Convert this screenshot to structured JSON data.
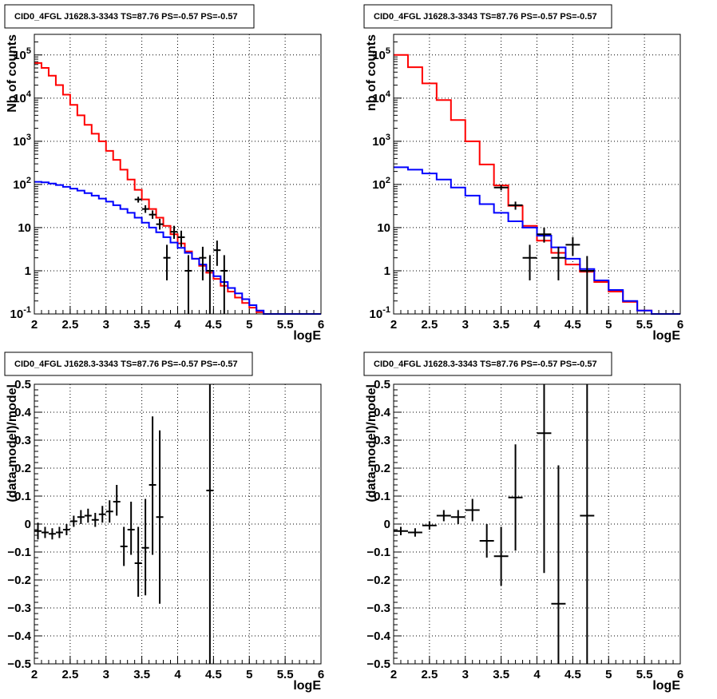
{
  "colors": {
    "model_total": "#ff0000",
    "model_background": "#0000ff",
    "data": "#000000",
    "grid": "#000000"
  },
  "chart_data": [
    {
      "type": "line",
      "title": "CID0_4FGL J1628.3-3343 TS=87.76 PS=-0.57 PS=-0.57",
      "xlabel": "logE",
      "ylabel": "Nb of counts",
      "xlim": [
        2,
        6
      ],
      "ylim": [
        0.1,
        300000
      ],
      "yscale": "log",
      "grid": true,
      "xticks": [
        "2",
        "2.5",
        "3",
        "3.5",
        "4",
        "4.5",
        "5",
        "5.5",
        "6"
      ],
      "yticks": [
        {
          "v": 0.1,
          "b": "10",
          "e": "-1"
        },
        {
          "v": 1,
          "b": "1",
          "e": ""
        },
        {
          "v": 10,
          "b": "10",
          "e": ""
        },
        {
          "v": 100,
          "b": "10",
          "e": "2"
        },
        {
          "v": 1000,
          "b": "10",
          "e": "3"
        },
        {
          "v": 10000,
          "b": "10",
          "e": "4"
        },
        {
          "v": 100000,
          "b": "10",
          "e": "5"
        }
      ],
      "bin_edges": [
        2.0,
        2.1,
        2.2,
        2.3,
        2.4,
        2.5,
        2.6,
        2.7,
        2.8,
        2.9,
        3.0,
        3.1,
        3.2,
        3.3,
        3.4,
        3.5,
        3.6,
        3.7,
        3.8,
        3.9,
        4.0,
        4.1,
        4.2,
        4.3,
        4.4,
        4.5,
        4.6,
        4.7,
        4.8,
        4.9,
        5.0,
        5.1,
        5.2,
        5.3,
        5.4,
        5.5,
        5.6,
        5.7,
        5.8,
        5.9,
        6.0
      ],
      "series": [
        {
          "values": [
            65000,
            50000,
            33000,
            20000,
            12000,
            7000,
            4000,
            2400,
            1500,
            1000,
            600,
            370,
            220,
            130,
            75,
            45,
            27,
            17,
            11,
            7,
            4.3,
            2.8,
            1.9,
            1.3,
            0.9,
            0.65,
            0.45,
            0.33,
            0.24,
            0.18,
            0.14,
            0.11,
            0.09,
            0.09,
            0.09,
            0.09,
            0.09,
            0.09,
            0.09,
            0.09
          ]
        },
        {
          "values": [
            115,
            112,
            105,
            97,
            88,
            80,
            72,
            63,
            55,
            47,
            40,
            33,
            27,
            22,
            17,
            13,
            10,
            7.8,
            6,
            4.5,
            3.4,
            2.6,
            1.9,
            1.4,
            1.0,
            0.75,
            0.55,
            0.4,
            0.3,
            0.22,
            0.16,
            0.12,
            0.09,
            0.09,
            0.09,
            0.09,
            0.09,
            0.09,
            0.09,
            0.09
          ]
        }
      ],
      "points": [
        {
          "x": 3.45,
          "y": 45,
          "lo": 38,
          "hi": 52
        },
        {
          "x": 3.55,
          "y": 27,
          "lo": 22,
          "hi": 33
        },
        {
          "x": 3.65,
          "y": 20,
          "lo": 16,
          "hi": 25
        },
        {
          "x": 3.75,
          "y": 12,
          "lo": 9,
          "hi": 16
        },
        {
          "x": 3.85,
          "y": 2,
          "lo": 0.6,
          "hi": 4
        },
        {
          "x": 3.95,
          "y": 8,
          "lo": 5.5,
          "hi": 11
        },
        {
          "x": 4.05,
          "y": 6,
          "lo": 3.6,
          "hi": 8.5
        },
        {
          "x": 4.15,
          "y": 1,
          "lo": 0.1,
          "hi": 2.3
        },
        {
          "x": 4.35,
          "y": 2,
          "lo": 0.6,
          "hi": 3.6
        },
        {
          "x": 4.45,
          "y": 1,
          "lo": 0.1,
          "hi": 2.3
        },
        {
          "x": 4.55,
          "y": 3,
          "lo": 1.3,
          "hi": 5
        },
        {
          "x": 4.65,
          "y": 1,
          "lo": 0.1,
          "hi": 2.3
        }
      ]
    },
    {
      "type": "line",
      "title": "CID0_4FGL J1628.3-3343 TS=87.76 PS=-0.57 PS=-0.57",
      "xlabel": "logE",
      "ylabel": "nb of counts",
      "xlim": [
        2,
        6
      ],
      "ylim": [
        0.1,
        300000
      ],
      "yscale": "log",
      "grid": true,
      "xticks": [
        "2",
        "2.5",
        "3",
        "3.5",
        "4",
        "4.5",
        "5",
        "5.5",
        "6"
      ],
      "yticks": [
        {
          "v": 0.1,
          "b": "10",
          "e": "-1"
        },
        {
          "v": 1,
          "b": "1",
          "e": ""
        },
        {
          "v": 10,
          "b": "10",
          "e": ""
        },
        {
          "v": 100,
          "b": "10",
          "e": "2"
        },
        {
          "v": 1000,
          "b": "10",
          "e": "3"
        },
        {
          "v": 10000,
          "b": "10",
          "e": "4"
        },
        {
          "v": 100000,
          "b": "10",
          "e": "5"
        }
      ],
      "bin_edges": [
        2.0,
        2.2,
        2.4,
        2.6,
        2.8,
        3.0,
        3.2,
        3.4,
        3.6,
        3.8,
        4.0,
        4.2,
        4.4,
        4.6,
        4.8,
        5.0,
        5.2,
        5.4,
        5.6,
        5.8,
        6.0
      ],
      "series": [
        {
          "values": [
            100000,
            52000,
            22000,
            9000,
            3100,
            1000,
            290,
            95,
            32,
            11,
            5,
            2.6,
            1.4,
            0.95,
            0.55,
            0.33,
            0.19,
            0.12,
            0.1,
            0.1
          ]
        },
        {
          "values": [
            250,
            220,
            180,
            130,
            85,
            55,
            35,
            22,
            14,
            10,
            6.5,
            3.5,
            1.9,
            1.1,
            0.6,
            0.36,
            0.2,
            0.12,
            0.1,
            0.1
          ]
        }
      ],
      "points": [
        {
          "x": 3.5,
          "y": 85,
          "lo": 73,
          "hi": 97
        },
        {
          "x": 3.7,
          "y": 33,
          "lo": 26,
          "hi": 40
        },
        {
          "x": 3.9,
          "y": 2,
          "lo": 0.6,
          "hi": 4
        },
        {
          "x": 4.1,
          "y": 7,
          "lo": 4.5,
          "hi": 10
        },
        {
          "x": 4.3,
          "y": 2,
          "lo": 0.6,
          "hi": 3.6
        },
        {
          "x": 4.5,
          "y": 4,
          "lo": 2.2,
          "hi": 6
        },
        {
          "x": 4.7,
          "y": 1,
          "lo": 0.1,
          "hi": 2.2
        }
      ]
    },
    {
      "type": "scatter",
      "title": "CID0_4FGL J1628.3-3343 TS=87.76 PS=-0.57 PS=-0.57",
      "xlabel": "logE",
      "ylabel": "(data-model)/model",
      "xlim": [
        2,
        6
      ],
      "ylim": [
        -0.5,
        0.5
      ],
      "grid": true,
      "xticks": [
        "2",
        "2.5",
        "3",
        "3.5",
        "4",
        "4.5",
        "5",
        "5.5",
        "6"
      ],
      "yticks": [
        "−0.5",
        "−0.4",
        "−0.3",
        "−0.2",
        "−0.1",
        "0",
        "0.1",
        "0.2",
        "0.3",
        "0.4",
        "0.5"
      ],
      "xerr": 0.05,
      "points": [
        {
          "x": 2.05,
          "y": -0.025,
          "lo": -0.055,
          "hi": 0.005
        },
        {
          "x": 2.15,
          "y": -0.03,
          "lo": -0.05,
          "hi": -0.01
        },
        {
          "x": 2.25,
          "y": -0.035,
          "lo": -0.055,
          "hi": -0.015
        },
        {
          "x": 2.35,
          "y": -0.03,
          "lo": -0.05,
          "hi": -0.01
        },
        {
          "x": 2.45,
          "y": -0.02,
          "lo": -0.04,
          "hi": 0.0
        },
        {
          "x": 2.55,
          "y": 0.01,
          "lo": -0.01,
          "hi": 0.03
        },
        {
          "x": 2.65,
          "y": 0.025,
          "lo": 0.0,
          "hi": 0.05
        },
        {
          "x": 2.75,
          "y": 0.03,
          "lo": 0.005,
          "hi": 0.055
        },
        {
          "x": 2.85,
          "y": 0.015,
          "lo": -0.01,
          "hi": 0.04
        },
        {
          "x": 2.95,
          "y": 0.035,
          "lo": 0.005,
          "hi": 0.065
        },
        {
          "x": 3.05,
          "y": 0.045,
          "lo": 0.005,
          "hi": 0.085
        },
        {
          "x": 3.15,
          "y": 0.08,
          "lo": 0.03,
          "hi": 0.14
        },
        {
          "x": 3.25,
          "y": -0.08,
          "lo": -0.15,
          "hi": -0.01
        },
        {
          "x": 3.35,
          "y": -0.02,
          "lo": -0.11,
          "hi": 0.08
        },
        {
          "x": 3.45,
          "y": -0.14,
          "lo": -0.26,
          "hi": -0.01
        },
        {
          "x": 3.55,
          "y": -0.085,
          "lo": -0.255,
          "hi": 0.09
        },
        {
          "x": 3.65,
          "y": 0.14,
          "lo": -0.11,
          "hi": 0.385
        },
        {
          "x": 3.75,
          "y": 0.025,
          "lo": -0.285,
          "hi": 0.335
        },
        {
          "x": 4.45,
          "y": 0.12,
          "lo": -0.5,
          "hi": 0.5
        }
      ]
    },
    {
      "type": "scatter",
      "title": "CID0_4FGL J1628.3-3343 TS=87.76 PS=-0.57 PS=-0.57",
      "xlabel": "logE",
      "ylabel": "(data-model)/model",
      "xlim": [
        2,
        6
      ],
      "ylim": [
        -0.5,
        0.5
      ],
      "grid": true,
      "xticks": [
        "2",
        "2.5",
        "3",
        "3.5",
        "4",
        "4.5",
        "5",
        "5.5",
        "6"
      ],
      "yticks": [
        "−0.5",
        "−0.4",
        "−0.3",
        "−0.2",
        "−0.1",
        "0",
        "0.1",
        "0.2",
        "0.3",
        "0.4",
        "0.5"
      ],
      "xerr": 0.1,
      "points": [
        {
          "x": 2.1,
          "y": -0.025,
          "lo": -0.04,
          "hi": -0.01
        },
        {
          "x": 2.3,
          "y": -0.03,
          "lo": -0.045,
          "hi": -0.015
        },
        {
          "x": 2.5,
          "y": -0.005,
          "lo": -0.02,
          "hi": 0.01
        },
        {
          "x": 2.7,
          "y": 0.03,
          "lo": 0.01,
          "hi": 0.05
        },
        {
          "x": 2.9,
          "y": 0.025,
          "lo": 0.0,
          "hi": 0.05
        },
        {
          "x": 3.1,
          "y": 0.05,
          "lo": 0.01,
          "hi": 0.09
        },
        {
          "x": 3.3,
          "y": -0.06,
          "lo": -0.12,
          "hi": 0.0
        },
        {
          "x": 3.5,
          "y": -0.115,
          "lo": -0.22,
          "hi": -0.01
        },
        {
          "x": 3.7,
          "y": 0.095,
          "lo": -0.095,
          "hi": 0.285
        },
        {
          "x": 4.1,
          "y": 0.325,
          "lo": -0.175,
          "hi": 0.5
        },
        {
          "x": 4.3,
          "y": -0.285,
          "lo": -0.5,
          "hi": 0.21
        },
        {
          "x": 4.7,
          "y": 0.03,
          "lo": -0.5,
          "hi": 0.5
        }
      ]
    }
  ]
}
